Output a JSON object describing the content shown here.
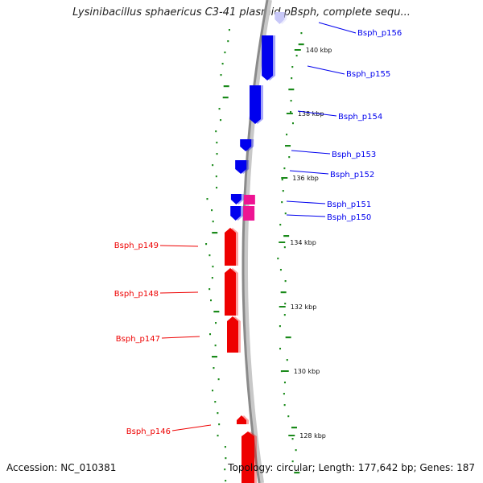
{
  "title": "Lysinibacillus sphaericus C3-41 plasmid pBsph, complete sequ...",
  "footer": {
    "accession": "Accession: NC_010381",
    "summary": "Topology: circular; Length: 177,642 bp; Genes: 187"
  },
  "colors": {
    "backbone": "#8a8a8a",
    "gc_dots": "#1a8a1a",
    "forward_gene": "#0000ee",
    "reverse_gene": "#ee0000",
    "highlight_gene": "#ee1493",
    "faded_gene": "#c8c8f8"
  },
  "ticks": [
    "140 kbp",
    "138 kbp",
    "136 kbp",
    "134 kbp",
    "132 kbp",
    "130 kbp",
    "128 kbp"
  ],
  "genes": [
    {
      "name": "Bsph_p156",
      "strand": "forward"
    },
    {
      "name": "Bsph_p155",
      "strand": "forward"
    },
    {
      "name": "Bsph_p154",
      "strand": "forward"
    },
    {
      "name": "Bsph_p153",
      "strand": "forward"
    },
    {
      "name": "Bsph_p152",
      "strand": "forward"
    },
    {
      "name": "Bsph_p151",
      "strand": "forward"
    },
    {
      "name": "Bsph_p150",
      "strand": "forward"
    },
    {
      "name": "Bsph_p149",
      "strand": "reverse"
    },
    {
      "name": "Bsph_p148",
      "strand": "reverse"
    },
    {
      "name": "Bsph_p147",
      "strand": "reverse"
    },
    {
      "name": "Bsph_p146",
      "strand": "reverse"
    }
  ]
}
